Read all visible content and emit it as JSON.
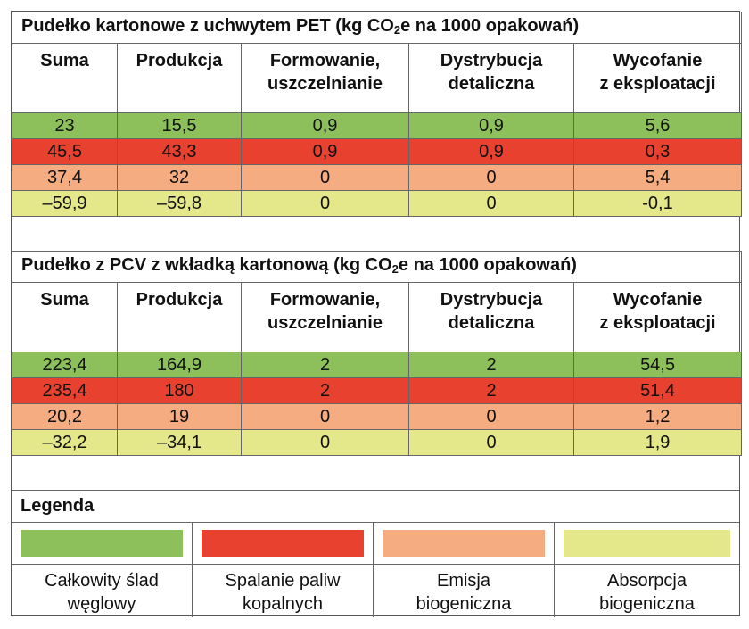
{
  "table1": {
    "title_pre": "Pudełko kartonowe z uchwytem PET (kg CO",
    "title_sub": "2",
    "title_post": "e na 1000 opakowań)",
    "headers": [
      {
        "l1": "Suma",
        "l2": ""
      },
      {
        "l1": "Produkcja",
        "l2": ""
      },
      {
        "l1": "Formowanie,",
        "l2": "uszczelnianie"
      },
      {
        "l1": "Dystrybucja",
        "l2": "detaliczna"
      },
      {
        "l1": "Wycofanie",
        "l2": "z eksploatacji"
      }
    ],
    "rows": [
      [
        "23",
        "15,5",
        "0,9",
        "0,9",
        "5,6"
      ],
      [
        "45,5",
        "43,3",
        "0,9",
        "0,9",
        "0,3"
      ],
      [
        "37,4",
        "32",
        "0",
        "0",
        "5,4"
      ],
      [
        "–59,9",
        "–59,8",
        "0",
        "0",
        "-0,1"
      ]
    ]
  },
  "table2": {
    "title_pre": "Pudełko z PCV z wkładką kartonową (kg CO",
    "title_sub": "2",
    "title_post": "e na 1000 opakowań)",
    "headers": [
      {
        "l1": "Suma",
        "l2": ""
      },
      {
        "l1": "Produkcja",
        "l2": ""
      },
      {
        "l1": "Formowanie,",
        "l2": "uszczelnianie"
      },
      {
        "l1": "Dystrybucja",
        "l2": "detaliczna"
      },
      {
        "l1": "Wycofanie",
        "l2": "z eksploatacji"
      }
    ],
    "rows": [
      [
        "223,4",
        "164,9",
        "2",
        "2",
        "54,5"
      ],
      [
        "235,4",
        "180",
        "2",
        "2",
        "51,4"
      ],
      [
        "20,2",
        "19",
        "0",
        "0",
        "1,2"
      ],
      [
        "–32,2",
        "–34,1",
        "0",
        "0",
        "1,9"
      ]
    ]
  },
  "legend": {
    "title": "Legenda",
    "items": [
      {
        "l1": "Całkowity ślad",
        "l2": "węglowy",
        "color": "#8dc05a"
      },
      {
        "l1": "Spalanie paliw",
        "l2": "kopalnych",
        "color": "#e8412f"
      },
      {
        "l1": "Emisja",
        "l2": "biogeniczna",
        "color": "#f4ac80"
      },
      {
        "l1": "Absorpcja",
        "l2": "biogeniczna",
        "color": "#e4e78a"
      }
    ]
  }
}
